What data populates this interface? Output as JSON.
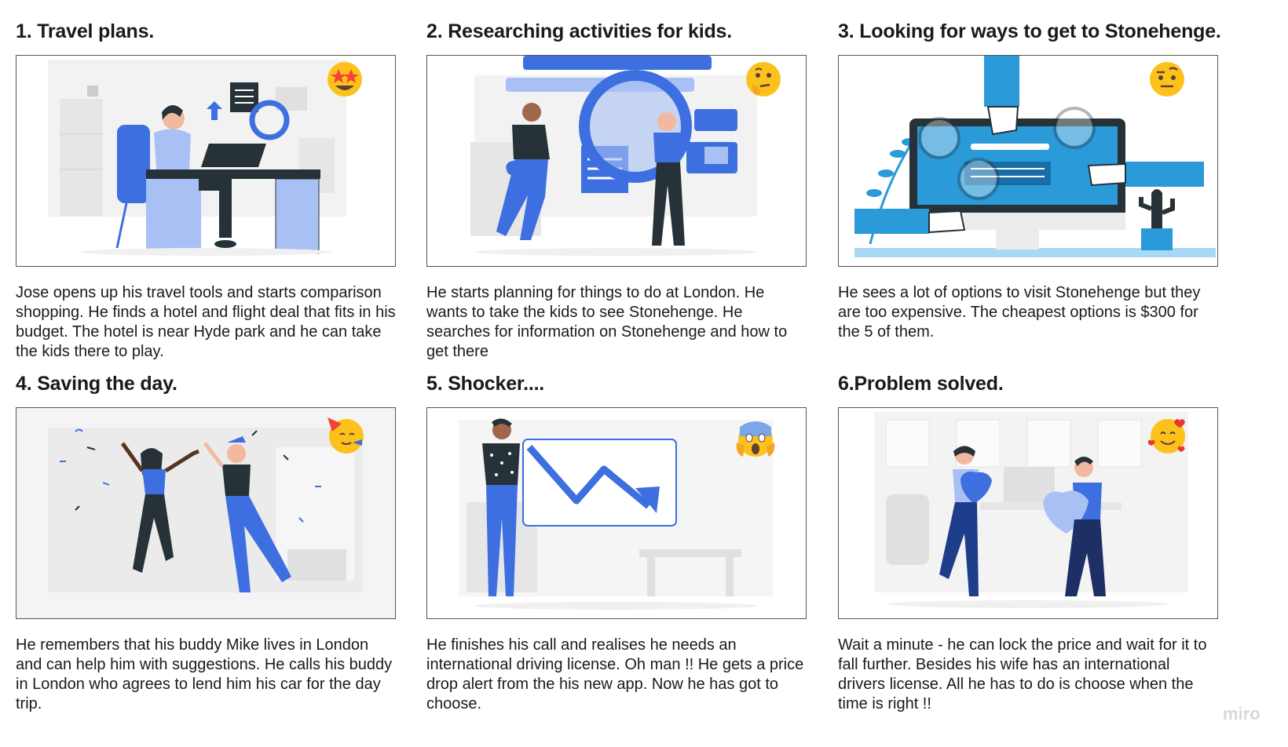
{
  "panels": [
    {
      "title": "1. Travel plans.",
      "emoji": "star-struck-emoji",
      "description": "Jose opens up his travel tools and starts comparison shopping. He finds a hotel and flight deal that fits in his budget. The hotel is near Hyde park and he can take the kids there to play."
    },
    {
      "title": "2. Researching activities for kids.",
      "emoji": "thinking-face-emoji",
      "description": "He starts planning for things to do at London. He wants to take the kids to see Stonehenge. He searches for information on Stonehenge and how to get there"
    },
    {
      "title": "3. Looking for ways to get to Stonehenge.",
      "emoji": "raised-eyebrow-emoji",
      "description": "He sees a lot of options to visit Stonehenge but they are too expensive. The cheapest options is $300 for the 5 of them."
    },
    {
      "title": "4. Saving the day.",
      "emoji": "partying-face-emoji",
      "description": "He remembers that his buddy Mike lives in London and can help him with suggestions. He calls his buddy in London who agrees to lend him his car for the day trip."
    },
    {
      "title": "5. Shocker....",
      "emoji": "screaming-face-emoji",
      "description": "He  finishes his call and  realises he needs an international driving license. Oh man !! He gets a price drop alert from the his new app. Now he has got to choose."
    },
    {
      "title": "6.Problem solved.",
      "emoji": "smiling-face-with-hearts-emoji",
      "description": "Wait a minute - he can lock the price and wait for it to fall further. Besides his wife has an international drivers license. All he has to do is choose when the time is right !!"
    }
  ],
  "watermark": "miro",
  "colors": {
    "accent": "#3d6fe0",
    "dark": "#263238",
    "cyan": "#2b9ad8",
    "light": "#a9c0f5",
    "emoji": "#fcc21b"
  }
}
